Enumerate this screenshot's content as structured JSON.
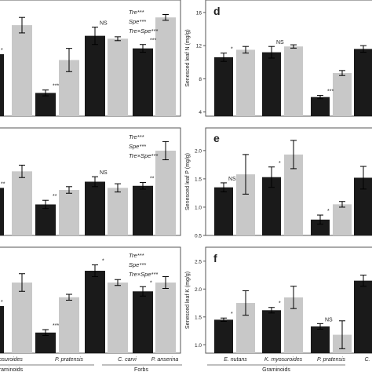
{
  "figure": {
    "colors": {
      "treatment_dark": "#1a1a1a",
      "control_light": "#c8c8c8",
      "frame": "#555555",
      "text": "#222222"
    }
  },
  "chart_data": [
    {
      "panel": "a-cropped",
      "type": "bar",
      "title": "",
      "ylabel": "",
      "categories": [
        "K. myosuroides",
        "P. pratensis",
        "C. carvi",
        "P. anserina"
      ],
      "series": [
        {
          "values": [
            11.4,
            7.4,
            13.3,
            12.0
          ]
        },
        {
          "values": [
            14.4,
            10.8,
            13.0,
            15.2
          ]
        }
      ],
      "errors": [
        [
          null,
          0.3,
          0.9,
          0.4
        ],
        [
          0.8,
          1.2,
          0.2,
          0.3
        ]
      ],
      "sig_labels": [
        "*",
        "***",
        "NS",
        "***"
      ],
      "stats": [
        "Tre***",
        "Spe***",
        "Tre×Spe***"
      ],
      "ylim": [
        5,
        17
      ]
    },
    {
      "panel": "d",
      "type": "bar",
      "title": "",
      "ylabel": "Senesced leaf N (mg/g)",
      "yticks": [
        4,
        8,
        12,
        16
      ],
      "ylim": [
        3.5,
        17.5
      ],
      "categories": [
        "E. nutans",
        "K. myosuroides",
        "P. pratensis",
        "C."
      ],
      "series": [
        {
          "values": [
            10.6,
            11.2,
            5.8,
            11.6
          ]
        },
        {
          "values": [
            11.5,
            11.9,
            8.7,
            null
          ]
        }
      ],
      "errors": [
        [
          0.5,
          0.7,
          0.2,
          0.4
        ],
        [
          0.4,
          0.2,
          0.3,
          null
        ]
      ],
      "sig_labels": [
        "*",
        "NS",
        "***",
        ""
      ]
    },
    {
      "panel": "b-cropped",
      "type": "bar",
      "title": "",
      "ylabel": "",
      "categories": [
        "K. myosuroides",
        "P. pratensis",
        "C. carvi",
        "P. anserina"
      ],
      "series": [
        {
          "values": [
            1.15,
            0.75,
            1.3,
            1.2
          ]
        },
        {
          "values": [
            1.55,
            1.1,
            1.15,
            2.05
          ]
        }
      ],
      "errors": [
        [
          null,
          0.1,
          0.12,
          0.08
        ],
        [
          0.15,
          0.08,
          0.1,
          0.22
        ]
      ],
      "sig_labels": [
        "**",
        "**",
        "NS",
        "**"
      ],
      "stats": [
        "Tre***",
        "Spe***",
        "Tre×Spe***"
      ],
      "ylim": [
        0,
        2.6
      ]
    },
    {
      "panel": "e",
      "type": "bar",
      "title": "",
      "ylabel": "Senesced leaf P (mg/g)",
      "yticks": [
        0.5,
        1.0,
        1.5,
        2.0
      ],
      "yticklabels": [
        "0.5",
        "1.0",
        "1.5",
        "2.0"
      ],
      "ylim": [
        0.5,
        2.4
      ],
      "categories": [
        "E. nutans",
        "K. myosuroides",
        "P. pratensis",
        "C."
      ],
      "series": [
        {
          "values": [
            1.35,
            1.53,
            0.78,
            1.52
          ]
        },
        {
          "values": [
            1.58,
            1.93,
            1.05,
            null
          ]
        }
      ],
      "errors": [
        [
          0.08,
          0.18,
          0.08,
          0.2
        ],
        [
          0.35,
          0.25,
          0.05,
          null
        ]
      ],
      "sig_labels": [
        "NS",
        "*",
        "*",
        ""
      ]
    },
    {
      "panel": "c-cropped",
      "type": "bar",
      "title": "",
      "ylabel": "",
      "categories": [
        "K. myosuroides",
        "P. pratensis",
        "C. carvi",
        "P. anserina"
      ],
      "series": [
        {
          "values": [
            1.6,
            1.15,
            2.2,
            1.85
          ]
        },
        {
          "values": [
            2.0,
            1.75,
            2.0,
            2.0
          ]
        }
      ],
      "errors": [
        [
          null,
          0.05,
          0.1,
          0.08
        ],
        [
          0.15,
          0.05,
          0.05,
          0.1
        ]
      ],
      "sig_labels": [
        "*",
        "***",
        "*",
        "*"
      ],
      "stats": [
        "Tre***",
        "Spe***",
        "Tre×Spe***"
      ],
      "ylim": [
        0.8,
        2.6
      ]
    },
    {
      "panel": "f",
      "type": "bar",
      "title": "",
      "ylabel": "Senesced leaf K (mg/g)",
      "yticks": [
        1.0,
        1.5,
        2.0,
        2.5
      ],
      "yticklabels": [
        "1.0",
        "1.5",
        "2.0",
        "2.5"
      ],
      "ylim": [
        0.85,
        2.75
      ],
      "categories": [
        "E. nutans",
        "K. myosuroides",
        "P. pratensis",
        "C."
      ],
      "series": [
        {
          "values": [
            1.45,
            1.62,
            1.33,
            2.15
          ]
        },
        {
          "values": [
            1.75,
            1.85,
            1.18,
            null
          ]
        }
      ],
      "errors": [
        [
          0.03,
          0.05,
          0.05,
          0.1
        ],
        [
          0.22,
          0.2,
          0.25,
          null
        ]
      ],
      "sig_labels": [
        "*",
        "*",
        "NS",
        ""
      ]
    }
  ],
  "group_labels": {
    "left": [
      {
        "text": "raminoids"
      },
      {
        "text": "Forbs"
      }
    ],
    "right": [
      {
        "text": "Graminoids"
      }
    ]
  },
  "panel_letters": [
    "d",
    "e",
    "f"
  ]
}
